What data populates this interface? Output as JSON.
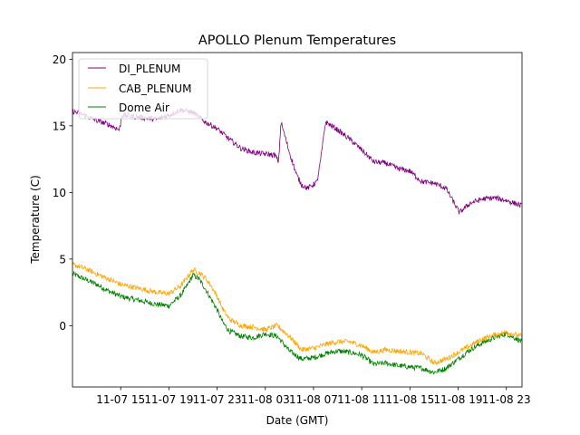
{
  "chart_data": {
    "type": "line",
    "title": "APOLLO Plenum Temperatures",
    "xlabel": "Date (GMT)",
    "ylabel": "Temperature (C)",
    "x_unit": "hours since 11-07 11:00 GMT",
    "xlim": [
      0,
      37.3
    ],
    "ylim": [
      -4.6,
      20.5
    ],
    "xticks": [
      {
        "x": 4,
        "label": "11-07 15"
      },
      {
        "x": 8,
        "label": "11-07 19"
      },
      {
        "x": 12,
        "label": "11-07 23"
      },
      {
        "x": 16,
        "label": "11-08 03"
      },
      {
        "x": 20,
        "label": "11-08 07"
      },
      {
        "x": 24,
        "label": "11-08 11"
      },
      {
        "x": 28,
        "label": "11-08 15"
      },
      {
        "x": 32,
        "label": "11-08 19"
      },
      {
        "x": 36,
        "label": "11-08 23"
      }
    ],
    "yticks": [
      0,
      5,
      10,
      15,
      20
    ],
    "legend_position": "upper-left",
    "series": [
      {
        "name": "DI_PLENUM",
        "color": "#800080",
        "noise": 0.2,
        "x": [
          0,
          1,
          2,
          3,
          3.9,
          4.1,
          5,
          6,
          7,
          8,
          9,
          10,
          11,
          12,
          13,
          14,
          15,
          16.8,
          17.1,
          17.3,
          18,
          18.6,
          19,
          19.5,
          20.3,
          20.6,
          21,
          22,
          23,
          24,
          25,
          26,
          27,
          28,
          29,
          30,
          31,
          32.1,
          32.5,
          33,
          34,
          35,
          36,
          37.3
        ],
        "y": [
          16.1,
          15.8,
          15.4,
          15.1,
          14.7,
          15.8,
          15.7,
          15.6,
          15.5,
          15.8,
          16.2,
          16.0,
          15.3,
          14.8,
          14.0,
          13.3,
          13.0,
          12.8,
          12.3,
          15.3,
          13.0,
          11.3,
          10.6,
          10.3,
          10.8,
          12.5,
          15.3,
          14.7,
          14.0,
          13.2,
          12.3,
          12.2,
          11.8,
          11.6,
          10.8,
          10.7,
          10.3,
          8.5,
          8.8,
          9.2,
          9.5,
          9.6,
          9.4,
          9.0
        ]
      },
      {
        "name": "CAB_PLENUM",
        "color": "#ffa500",
        "noise": 0.2,
        "x": [
          0,
          1,
          2,
          3,
          4,
          5,
          6,
          7,
          8,
          9,
          9.5,
          10,
          10.5,
          11,
          11.5,
          12,
          12.5,
          13,
          14,
          15,
          16,
          17,
          18,
          19,
          20,
          21,
          22,
          23,
          24,
          25,
          26,
          27,
          28,
          29,
          30,
          31,
          32,
          33,
          34,
          35,
          36,
          37.3
        ],
        "y": [
          4.6,
          4.3,
          3.9,
          3.5,
          3.1,
          2.9,
          2.7,
          2.5,
          2.4,
          3.0,
          3.6,
          4.2,
          4.0,
          3.6,
          3.0,
          2.2,
          1.2,
          0.5,
          0.0,
          -0.1,
          -0.3,
          0.0,
          -0.8,
          -1.8,
          -1.7,
          -1.4,
          -1.2,
          -1.2,
          -1.5,
          -2.0,
          -1.8,
          -1.9,
          -2.0,
          -2.1,
          -2.8,
          -2.5,
          -2.0,
          -1.5,
          -1.0,
          -0.7,
          -0.5,
          -0.8
        ]
      },
      {
        "name": "Dome Air",
        "color": "#008000",
        "noise": 0.2,
        "x": [
          0,
          1,
          2,
          3,
          4,
          5,
          6,
          7,
          8,
          9,
          9.5,
          10,
          10.5,
          11,
          11.5,
          12,
          12.5,
          13,
          14,
          15,
          16,
          17,
          18,
          19,
          20,
          21,
          22,
          23,
          24,
          25,
          26,
          27,
          28,
          29,
          30,
          31,
          32,
          33,
          34,
          35,
          36,
          37.3
        ],
        "y": [
          3.9,
          3.5,
          3.1,
          2.6,
          2.2,
          2.0,
          1.8,
          1.6,
          1.5,
          2.3,
          3.0,
          3.8,
          3.5,
          2.8,
          2.0,
          1.2,
          0.2,
          -0.4,
          -0.8,
          -0.9,
          -0.6,
          -0.8,
          -1.9,
          -2.5,
          -2.4,
          -2.1,
          -1.9,
          -2.0,
          -2.2,
          -2.9,
          -2.8,
          -3.0,
          -3.1,
          -3.2,
          -3.5,
          -3.2,
          -2.5,
          -1.8,
          -1.3,
          -0.9,
          -0.6,
          -1.2
        ]
      }
    ]
  }
}
